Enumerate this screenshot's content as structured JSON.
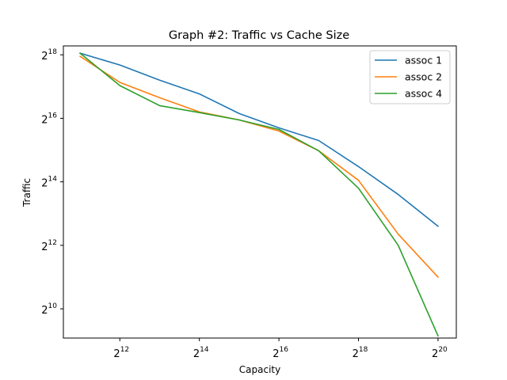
{
  "chart_data": {
    "type": "line",
    "title": "Graph #2: Traffic vs Cache Size",
    "xlabel": "Capacity",
    "ylabel": "Traffic",
    "xscale": "log2",
    "yscale": "log2",
    "x_exponents": [
      11,
      12,
      13,
      14,
      15,
      16,
      17,
      18,
      19,
      20
    ],
    "x_tick_exponents": [
      12,
      14,
      16,
      18,
      20
    ],
    "y_tick_exponents": [
      10,
      12,
      14,
      16,
      18
    ],
    "tick_base": "2",
    "xlim_exponent": [
      10.58,
      20.46
    ],
    "ylim_exponent": [
      9.08,
      18.28
    ],
    "grid": false,
    "legend_position": "upper right",
    "series": [
      {
        "name": "assoc 1",
        "color": "#1f77b4",
        "y_exponents": [
          18.05,
          17.68,
          17.2,
          16.77,
          16.15,
          15.7,
          15.3,
          14.48,
          13.6,
          12.6
        ]
      },
      {
        "name": "assoc 2",
        "color": "#ff7f0e",
        "y_exponents": [
          17.95,
          17.13,
          16.65,
          16.2,
          15.95,
          15.6,
          14.98,
          14.05,
          12.35,
          11.0
        ]
      },
      {
        "name": "assoc 4",
        "color": "#2ca02c",
        "y_exponents": [
          18.05,
          17.03,
          16.4,
          16.18,
          15.95,
          15.65,
          14.98,
          13.8,
          12.0,
          9.15
        ]
      }
    ]
  }
}
